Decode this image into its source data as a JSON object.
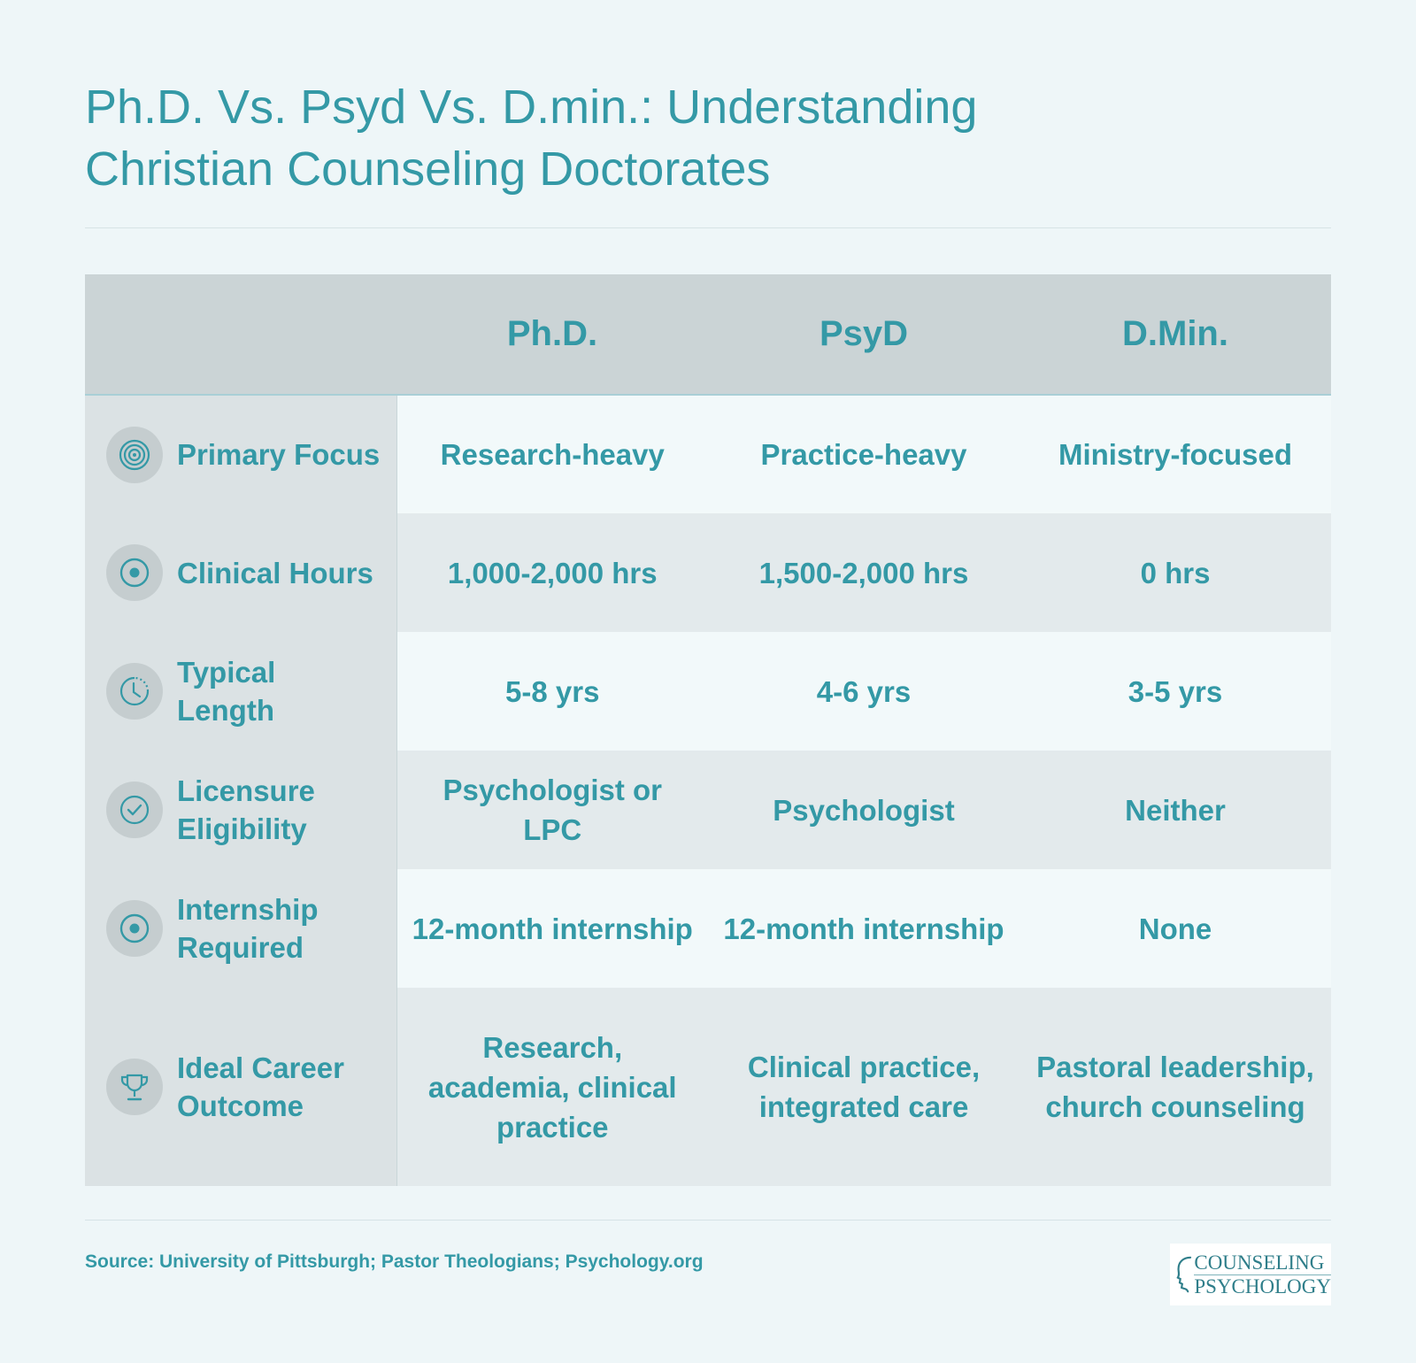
{
  "title": {
    "line1": "Ph.D. Vs. Psyd Vs. D.min.: Understanding",
    "line2": "Christian Counseling Doctorates"
  },
  "table": {
    "columns": [
      "Ph.D.",
      "PsyD",
      "D.Min."
    ],
    "rows": [
      {
        "icon": "target-icon",
        "label": "Primary Focus",
        "values": [
          "Research-heavy",
          "Practice-heavy",
          "Ministry-focused"
        ]
      },
      {
        "icon": "dot-circle-icon",
        "label": "Clinical Hours",
        "values": [
          "1,000-2,000 hrs",
          "1,500-2,000 hrs",
          "0 hrs"
        ]
      },
      {
        "icon": "clock-icon",
        "label": "Typical Length",
        "values": [
          "5-8 yrs",
          "4-6 yrs",
          "3-5 yrs"
        ]
      },
      {
        "icon": "check-circle-icon",
        "label": "Licensure Eligibility",
        "values": [
          "Psychologist or LPC",
          "Psychologist",
          "Neither"
        ]
      },
      {
        "icon": "dot-circle-icon",
        "label": "Internship Required",
        "values": [
          "12-month internship",
          "12-month internship",
          "None"
        ]
      },
      {
        "icon": "trophy-icon",
        "label": "Ideal Career Outcome",
        "values": [
          "Research, academia, clinical practice",
          "Clinical practice, integrated care",
          "Pastoral leadership, church counseling"
        ]
      }
    ]
  },
  "source": "Source: University of Pittsburgh; Pastor Theologians; Psychology.org",
  "logo": {
    "line1": "COUNSELING",
    "line2": "PSYCHOLOGY"
  },
  "colors": {
    "accent": "#3499a6",
    "background": "#eef6f8",
    "header_bg": "#cbd4d6",
    "label_col_bg": "#dbe2e4",
    "row_light": "#f2f9fa",
    "row_dark": "#e3eaec"
  }
}
